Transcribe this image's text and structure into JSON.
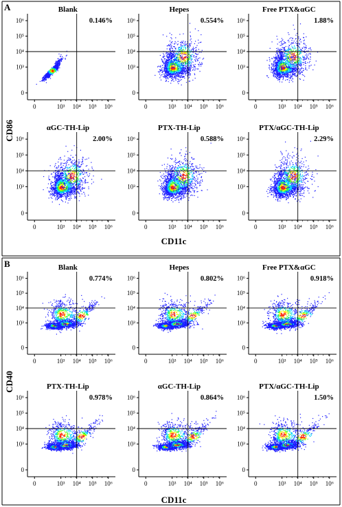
{
  "panels": [
    {
      "label": "A",
      "ylabel": "CD86",
      "xlabel": "CD11c",
      "x_ticks": [
        "0",
        "10³",
        "10⁴",
        "10⁵",
        "10⁶"
      ],
      "y_ticks": [
        "0",
        "10³",
        "10⁴",
        "10⁵",
        "10⁶"
      ],
      "plots": [
        {
          "title": "Blank",
          "percent": "0.146%"
        },
        {
          "title": "Hepes",
          "percent": "0.554%"
        },
        {
          "title": "Free PTX&αGC",
          "percent": "1.88%"
        },
        {
          "title": "αGC-TH-Lip",
          "percent": "2.00%"
        },
        {
          "title": "PTX-TH-Lip",
          "percent": "0.588%"
        },
        {
          "title": "PTX/αGC-TH-Lip",
          "percent": "2.29%"
        }
      ]
    },
    {
      "label": "B",
      "ylabel": "CD40",
      "xlabel": "CD11c",
      "x_ticks": [
        "0",
        "10³",
        "10⁴",
        "10⁵",
        "10⁶"
      ],
      "y_ticks": [
        "0",
        "10³",
        "10⁴",
        "10⁵",
        "10⁶"
      ],
      "plots": [
        {
          "title": "Blank",
          "percent": "0.774%"
        },
        {
          "title": "Hepes",
          "percent": "0.802%"
        },
        {
          "title": "Free PTX&αGC",
          "percent": "0.918%"
        },
        {
          "title": "PTX-TH-Lip",
          "percent": "0.978%"
        },
        {
          "title": "αGC-TH-Lip",
          "percent": "0.864%"
        },
        {
          "title": "PTX/αGC-TH-Lip",
          "percent": "1.50%"
        }
      ]
    }
  ],
  "chart_data": [
    {
      "type": "scatter",
      "panel": "A",
      "style": "flow cytometry density dot plot with quadrant gates",
      "xlabel": "CD11c",
      "ylabel": "CD86",
      "x_scale": "log (biexponential, 0 to 10⁶)",
      "y_scale": "log (biexponential, 0 to 10⁶)",
      "gate": {
        "x": 10000,
        "y": 10000
      },
      "density_colors": [
        "#1a1aff",
        "#00d0ff",
        "#33ff33",
        "#ffee00",
        "#ff2200"
      ],
      "subplots": [
        {
          "title": "Blank",
          "upper_right_percent": 0.146,
          "population": "compact diagonal"
        },
        {
          "title": "Hepes",
          "upper_right_percent": 0.554,
          "population": "broad"
        },
        {
          "title": "Free PTX&αGC",
          "upper_right_percent": 1.88,
          "population": "broad"
        },
        {
          "title": "αGC-TH-Lip",
          "upper_right_percent": 2.0,
          "population": "broad"
        },
        {
          "title": "PTX-TH-Lip",
          "upper_right_percent": 0.588,
          "population": "broad"
        },
        {
          "title": "PTX/αGC-TH-Lip",
          "upper_right_percent": 2.29,
          "population": "broad"
        }
      ]
    },
    {
      "type": "scatter",
      "panel": "B",
      "style": "flow cytometry density dot plot with quadrant gates",
      "xlabel": "CD11c",
      "ylabel": "CD40",
      "x_scale": "log (biexponential, 0 to 10⁶)",
      "y_scale": "log (biexponential, 0 to 10⁶)",
      "gate": {
        "x": 10000,
        "y": 10000
      },
      "density_colors": [
        "#1a1aff",
        "#00d0ff",
        "#33ff33",
        "#ffee00",
        "#ff2200"
      ],
      "subplots": [
        {
          "title": "Blank",
          "upper_right_percent": 0.774
        },
        {
          "title": "Hepes",
          "upper_right_percent": 0.802
        },
        {
          "title": "Free PTX&αGC",
          "upper_right_percent": 0.918
        },
        {
          "title": "PTX-TH-Lip",
          "upper_right_percent": 0.978
        },
        {
          "title": "αGC-TH-Lip",
          "upper_right_percent": 0.864
        },
        {
          "title": "PTX/αGC-TH-Lip",
          "upper_right_percent": 1.5
        }
      ]
    }
  ]
}
